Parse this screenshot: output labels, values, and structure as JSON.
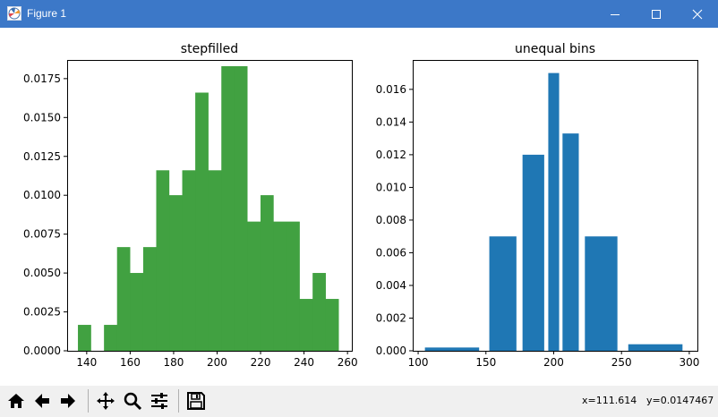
{
  "window": {
    "title": "Figure 1"
  },
  "status": {
    "x_readout": "x=111.614",
    "y_readout": "y=0.0147467"
  },
  "toolbar": {
    "buttons": [
      "home-icon",
      "back-arrow-icon",
      "forward-arrow-icon",
      "pan-icon",
      "zoom-icon",
      "configure-subplots-icon",
      "save-icon"
    ]
  },
  "colors": {
    "titlebar": "#3c78c8",
    "stepfilled": "#41a141",
    "unequal": "#1f77b4"
  },
  "chart_data": [
    {
      "type": "bar",
      "title": "stepfilled",
      "histtype": "stepfilled",
      "xlim": [
        131,
        262
      ],
      "ylim": [
        0,
        0.0187
      ],
      "x_ticks": [
        140,
        160,
        180,
        200,
        220,
        240,
        260
      ],
      "y_ticks": [
        "0.0000",
        "0.0025",
        "0.0050",
        "0.0075",
        "0.0100",
        "0.0125",
        "0.0150",
        "0.0175"
      ],
      "bin_edges": [
        136,
        142,
        148,
        154,
        160,
        166,
        172,
        178,
        184,
        190,
        196,
        202,
        208,
        214,
        220,
        226,
        232,
        238,
        244,
        250,
        256
      ],
      "values": [
        0.00166,
        0,
        0.00166,
        0.00666,
        0.005,
        0.00666,
        0.0116,
        0.01,
        0.0116,
        0.0166,
        0.0116,
        0.0183,
        0.0183,
        0.0083,
        0.01,
        0.0083,
        0.0083,
        0.00333,
        0.005,
        0.00333
      ],
      "color": "#41a141",
      "grid": false
    },
    {
      "type": "bar",
      "title": "unequal bins",
      "xlim": [
        96,
        306
      ],
      "ylim": [
        0,
        0.0178
      ],
      "x_ticks": [
        100,
        150,
        200,
        250,
        300
      ],
      "y_ticks": [
        "0.000",
        "0.002",
        "0.004",
        "0.006",
        "0.008",
        "0.010",
        "0.012",
        "0.014",
        "0.016"
      ],
      "bins": [
        {
          "left": 100,
          "right": 150,
          "value": 0.0002
        },
        {
          "left": 150,
          "right": 175,
          "value": 0.007
        },
        {
          "left": 175,
          "right": 195,
          "value": 0.012
        },
        {
          "left": 195,
          "right": 205,
          "value": 0.017
        },
        {
          "left": 205,
          "right": 220,
          "value": 0.0133
        },
        {
          "left": 220,
          "right": 250,
          "value": 0.007
        },
        {
          "left": 250,
          "right": 300,
          "value": 0.0004
        }
      ],
      "bar_gap": 0.2,
      "color": "#1f77b4",
      "grid": false
    }
  ]
}
